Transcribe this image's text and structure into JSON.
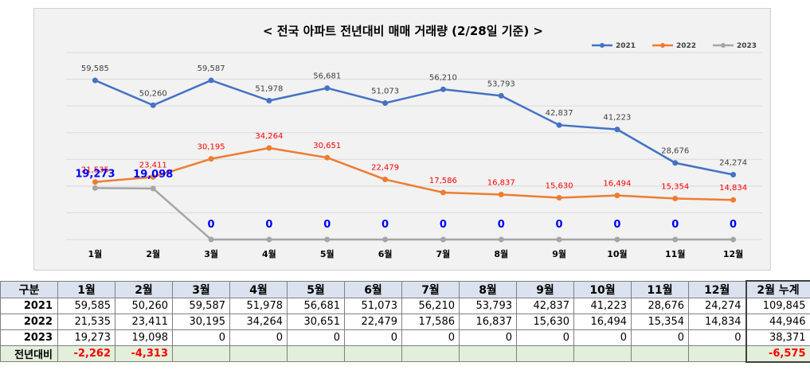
{
  "chart_data": {
    "type": "line",
    "title": "< 전국 아파트 전년대비 매매 거래량 (2/28일 기준) >",
    "categories": [
      "1월",
      "2월",
      "3월",
      "4월",
      "5월",
      "6월",
      "7월",
      "8월",
      "9월",
      "10월",
      "11월",
      "12월"
    ],
    "series": [
      {
        "name": "2021",
        "color": "#4472c4",
        "label_color": "#404040",
        "values": [
          59585,
          50260,
          59587,
          51978,
          56681,
          51073,
          56210,
          53793,
          42837,
          41223,
          28676,
          24274
        ],
        "labels": [
          "59,585",
          "50,260",
          "59,587",
          "51,978",
          "56,681",
          "51,073",
          "56,210",
          "53,793",
          "42,837",
          "41,223",
          "28,676",
          "24,274"
        ]
      },
      {
        "name": "2022",
        "color": "#ed7d31",
        "label_color": "#ff0000",
        "values": [
          21535,
          23411,
          30195,
          34264,
          30651,
          22479,
          17586,
          16837,
          15630,
          16494,
          15354,
          14834
        ],
        "labels": [
          "21,535",
          "23,411",
          "30,195",
          "34,264",
          "30,651",
          "22,479",
          "17,586",
          "16,837",
          "15,630",
          "16,494",
          "15,354",
          "14,834"
        ]
      },
      {
        "name": "2023",
        "color": "#a5a5a5",
        "label_color": "#0000ff",
        "values": [
          19273,
          19098,
          0,
          0,
          0,
          0,
          0,
          0,
          0,
          0,
          0,
          0
        ],
        "labels": [
          "19,273",
          "19,098",
          "0",
          "0",
          "0",
          "0",
          "0",
          "0",
          "0",
          "0",
          "0",
          "0"
        ]
      }
    ],
    "ylim": [
      0,
      70000
    ],
    "grid": true,
    "legend": "top-right"
  },
  "table": {
    "header": [
      "구분",
      "1월",
      "2월",
      "3월",
      "4월",
      "5월",
      "6월",
      "7월",
      "8월",
      "9월",
      "10월",
      "11월",
      "12월",
      "2월 누계"
    ],
    "rows": [
      {
        "label": "2021",
        "cells": [
          "59,585",
          "50,260",
          "59,587",
          "51,978",
          "56,681",
          "51,073",
          "56,210",
          "53,793",
          "42,837",
          "41,223",
          "28,676",
          "24,274",
          "109,845"
        ]
      },
      {
        "label": "2022",
        "cells": [
          "21,535",
          "23,411",
          "30,195",
          "34,264",
          "30,651",
          "22,479",
          "17,586",
          "16,837",
          "15,630",
          "16,494",
          "15,354",
          "14,834",
          "44,946"
        ]
      },
      {
        "label": "2023",
        "cells": [
          "19,273",
          "19,098",
          "0",
          "0",
          "0",
          "0",
          "0",
          "0",
          "0",
          "0",
          "0",
          "0",
          "38,371"
        ]
      },
      {
        "label": "전년대비",
        "cells": [
          "-2,262",
          "-4,313",
          "",
          "",
          "",
          "",
          "",
          "",
          "",
          "",
          "",
          "",
          "-6,575"
        ]
      }
    ]
  }
}
